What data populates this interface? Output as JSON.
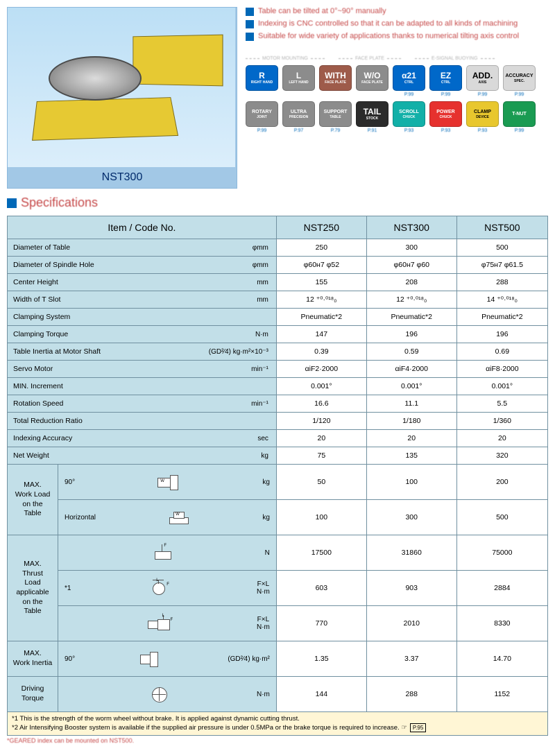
{
  "product_label": "NST300",
  "bullets": [
    "Table can be tilted at 0°~90° manually",
    "Indexing is CNC controlled so that it can be adapted to all kinds of machining",
    "Suitable for wide variety of applications thanks to numerical tilting axis control"
  ],
  "badge_groups": [
    "MOTOR MOUNTING",
    "FACE PLATE",
    "E-SIGNAL BUOYING",
    ""
  ],
  "badges_row1": [
    {
      "big": "R",
      "small": "RIGHT HAND",
      "bg": "#0068c9",
      "sub": ""
    },
    {
      "big": "L",
      "small": "LEFT HAND",
      "bg": "#8c8c8c",
      "sub": ""
    },
    {
      "big": "WITH",
      "small": "FACE PLATE",
      "bg": "#9e5b4a",
      "sub": ""
    },
    {
      "big": "W/O",
      "small": "FACE PLATE",
      "bg": "#8c8c8c",
      "sub": ""
    },
    {
      "big": "α21",
      "small": "CTRL",
      "bg": "#0068c9",
      "sub": "P.99"
    },
    {
      "big": "EZ",
      "small": "CTRL",
      "bg": "#0068c9",
      "sub": "P.99"
    },
    {
      "big": "ADD.",
      "small": "AXIS",
      "bg": "#d9d9d9",
      "fg": "#000",
      "sub": "P.99"
    },
    {
      "big": "ACCURACY",
      "small": "SPEC.",
      "bg": "#d9d9d9",
      "fg": "#000",
      "sub": "P.99"
    }
  ],
  "badges_row2": [
    {
      "big": "ROTARY",
      "small": "JOINT",
      "bg": "#8c8c8c",
      "sub": "P.99"
    },
    {
      "big": "ULTRA",
      "small": "PRECISION",
      "bg": "#8c8c8c",
      "sub": "P.97"
    },
    {
      "big": "SUPPORT",
      "small": "TABLE",
      "bg": "#8c8c8c",
      "sub": "P.79"
    },
    {
      "big": "TAIL",
      "small": "STOCK",
      "bg": "#2b2b2b",
      "sub": "P.91"
    },
    {
      "big": "SCROLL",
      "small": "CHUCK",
      "bg": "#12b0a8",
      "sub": "P.93"
    },
    {
      "big": "POWER",
      "small": "CHUCK",
      "bg": "#e6312e",
      "sub": "P.93"
    },
    {
      "big": "CLAMP",
      "small": "DEVICE",
      "bg": "#e8c72e",
      "fg": "#000",
      "sub": "P.93"
    },
    {
      "big": "T-NUT",
      "small": "",
      "bg": "#1a9b52",
      "sub": "P.99"
    }
  ],
  "sec_title": "Specifications",
  "columns": [
    "Item / Code No.",
    "NST250",
    "NST300",
    "NST500"
  ],
  "rows": [
    {
      "label": "Diameter of Table",
      "unit": "φmm",
      "v": [
        "250",
        "300",
        "500"
      ]
    },
    {
      "label": "Diameter of Spindle Hole",
      "unit": "φmm",
      "v": [
        "φ60ʜ7  φ52",
        "φ60ʜ7  φ60",
        "φ75ʜ7  φ61.5"
      ]
    },
    {
      "label": "Center Height",
      "unit": "mm",
      "v": [
        "155",
        "208",
        "288"
      ]
    },
    {
      "label": "Width of T Slot",
      "unit": "mm",
      "v": [
        "12 ⁺⁰·⁰¹⁸₀",
        "12 ⁺⁰·⁰¹⁸₀",
        "14 ⁺⁰·⁰¹⁸₀"
      ]
    },
    {
      "label": "Clamping System",
      "unit": "",
      "v": [
        "Pneumatic*2",
        "Pneumatic*2",
        "Pneumatic*2"
      ]
    },
    {
      "label": "Clamping Torque",
      "unit": "N·m",
      "v": [
        "147",
        "196",
        "196"
      ]
    },
    {
      "label": "Table Inertia at Motor Shaft",
      "unit": "(GD²⁄4) kg·m²×10⁻³",
      "v": [
        "0.39",
        "0.59",
        "0.69"
      ]
    },
    {
      "label": "Servo Motor",
      "unit": "min⁻¹",
      "v": [
        "αiF2·2000",
        "αiF4·2000",
        "αiF8·2000"
      ]
    },
    {
      "label": "MIN. Increment",
      "unit": "",
      "v": [
        "0.001°",
        "0.001°",
        "0.001°"
      ]
    },
    {
      "label": "Rotation Speed",
      "unit": "min⁻¹",
      "v": [
        "16.6",
        "11.1",
        "5.5"
      ]
    },
    {
      "label": "Total Reduction Ratio",
      "unit": "",
      "v": [
        "1/120",
        "1/180",
        "1/360"
      ]
    },
    {
      "label": "Indexing Accuracy",
      "unit": "sec",
      "v": [
        "20",
        "20",
        "20"
      ]
    },
    {
      "label": "Net Weight",
      "unit": "kg",
      "v": [
        "75",
        "135",
        "320"
      ]
    }
  ],
  "workload": {
    "group": "MAX.\nWork Load\non the\nTable",
    "rows": [
      {
        "sub": "90°",
        "unit": "kg",
        "v": [
          "50",
          "100",
          "200"
        ]
      },
      {
        "sub": "Horizontal",
        "unit": "kg",
        "v": [
          "100",
          "300",
          "500"
        ]
      }
    ]
  },
  "thrust": {
    "group": "MAX.\nThrust\nLoad\napplicable\non the\nTable",
    "rows": [
      {
        "sub": "",
        "unit": "N",
        "v": [
          "17500",
          "31860",
          "75000"
        ]
      },
      {
        "sub": "*1",
        "unit": "F×L\nN·m",
        "v": [
          "603",
          "903",
          "2884"
        ]
      },
      {
        "sub": "",
        "unit": "F×L\nN·m",
        "v": [
          "770",
          "2010",
          "8330"
        ]
      }
    ]
  },
  "inertia": {
    "group": "MAX.\nWork Inertia",
    "sub": "90°",
    "unit": "(GD²⁄4) kg·m²",
    "v": [
      "1.35",
      "3.37",
      "14.70"
    ]
  },
  "driving": {
    "group": "Driving\nTorque",
    "unit": "N·m",
    "v": [
      "144",
      "288",
      "1152"
    ]
  },
  "notes": [
    "*1 This is the strength of the worm wheel without brake. It is applied against dynamic cutting thrust.",
    "*2 Air Intensifying Booster system is available if the supplied air pressure is under 0.5MPa or the brake torque is required to increase."
  ],
  "note2_ref": "P.95",
  "bottom_illegible": "*GEARED index can be mounted on NST500.",
  "colors": {
    "header_bg": "#c2dfe8",
    "border": "#7090a0",
    "accent": "#0068b7",
    "blur_red": "#c64a4a",
    "note_bg": "#fff6d5"
  }
}
